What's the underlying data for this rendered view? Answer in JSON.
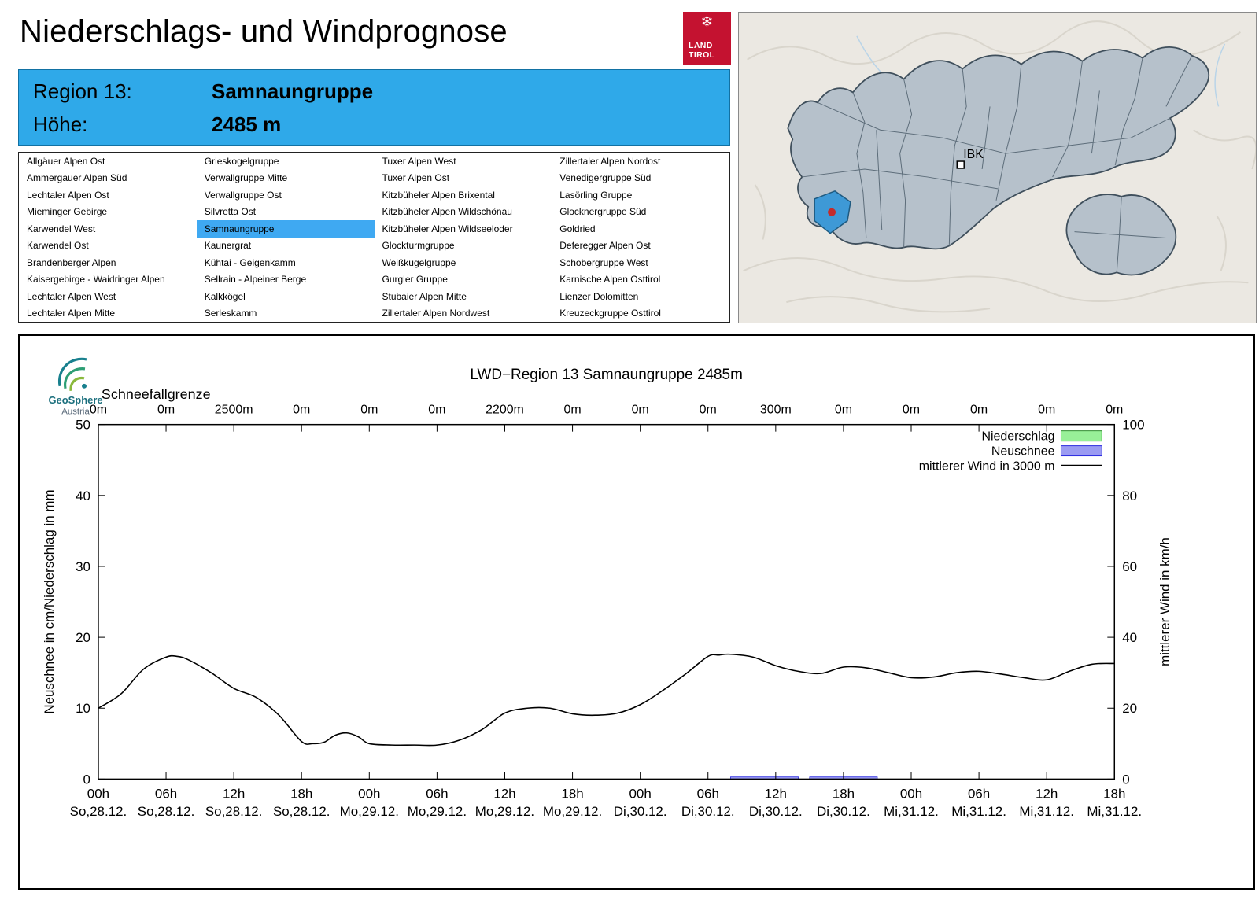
{
  "header": {
    "title": "Niederschlags- und Windprognose",
    "logo": {
      "line1": "LAND",
      "line2": "TIROL"
    }
  },
  "map": {
    "city_label": "IBK"
  },
  "region_info": {
    "region_label": "Region 13:",
    "region_value": "Samnaungruppe",
    "altitude_label": "Höhe:",
    "altitude_value": "2485 m"
  },
  "region_list": {
    "selected": "Samnaungruppe",
    "columns": [
      [
        "Allgäuer Alpen Ost",
        "Ammergauer Alpen Süd",
        "Lechtaler Alpen Ost",
        "Mieminger Gebirge",
        "Karwendel West",
        "Karwendel Ost",
        "Brandenberger Alpen",
        "Kaisergebirge - Waidringer Alpen",
        "Lechtaler Alpen West",
        "Lechtaler Alpen Mitte"
      ],
      [
        "Grieskogelgruppe",
        "Verwallgruppe Mitte",
        "Verwallgruppe Ost",
        "Silvretta Ost",
        "Samnaungruppe",
        "Kaunergrat",
        "Kühtai - Geigenkamm",
        "Sellrain - Alpeiner Berge",
        "Kalkkögel",
        "Serleskamm"
      ],
      [
        "Tuxer Alpen West",
        "Tuxer Alpen Ost",
        "Kitzbüheler Alpen Brixental",
        "Kitzbüheler Alpen Wildschönau",
        "Kitzbüheler Alpen Wildseeloder",
        "Glockturmgruppe",
        "Weißkugelgruppe",
        "Gurgler Gruppe",
        "Stubaier Alpen Mitte",
        "Zillertaler Alpen Nordwest"
      ],
      [
        "Zillertaler Alpen Nordost",
        "Venedigergruppe Süd",
        "Lasörling Gruppe",
        "Glocknergruppe Süd",
        "Goldried",
        "Deferegger Alpen Ost",
        "Schobergruppe West",
        "Karnische Alpen Osttirol",
        "Lienzer Dolomitten",
        "Kreuzeckgruppe Osttirol"
      ]
    ]
  },
  "geosphere": {
    "name": "GeoSphere",
    "sub": "Austria"
  },
  "colors": {
    "header_blue": "#2FA9E9",
    "highlight_blue": "#3FA9F2",
    "land_tirol_red": "#C41230",
    "niederschlag_green": "#98F098",
    "neuschnee_blue": "#9B9BF2",
    "wind_line": "#000000",
    "map_region_fill": "#B6C1CB",
    "map_selected_fill": "#3E99D6",
    "map_dot_red": "#C42B2B"
  },
  "chart_data": {
    "type": "line",
    "title": "LWD−Region 13 Samnaungruppe 2485m",
    "snowline_label": "Schneefallgrenze",
    "snowline_values": [
      "0m",
      "0m",
      "2500m",
      "0m",
      "0m",
      "0m",
      "2200m",
      "0m",
      "0m",
      "0m",
      "300m",
      "0m",
      "0m",
      "0m",
      "0m",
      "0m"
    ],
    "ylabel_left": "Neuschnee in cm/Niederschlag in mm",
    "ylabel_right": "mittlerer Wind in km/h",
    "ylim_left": [
      0,
      50
    ],
    "ylim_right": [
      0,
      100
    ],
    "yticks_left": [
      0,
      10,
      20,
      30,
      40,
      50
    ],
    "yticks_right": [
      0,
      20,
      40,
      60,
      80,
      100
    ],
    "x_range_hours": [
      0,
      90
    ],
    "x_tick_step_hours": 6,
    "x_tick_times": [
      "00h",
      "06h",
      "12h",
      "18h",
      "00h",
      "06h",
      "12h",
      "18h",
      "00h",
      "06h",
      "12h",
      "18h",
      "00h",
      "06h",
      "12h",
      "18h"
    ],
    "x_tick_dates": [
      "So,28.12.",
      "So,28.12.",
      "So,28.12.",
      "So,28.12.",
      "Mo,29.12.",
      "Mo,29.12.",
      "Mo,29.12.",
      "Mo,29.12.",
      "Di,30.12.",
      "Di,30.12.",
      "Di,30.12.",
      "Di,30.12.",
      "Mi,31.12.",
      "Mi,31.12.",
      "Mi,31.12.",
      "Mi,31.12."
    ],
    "legend": [
      {
        "label": "Niederschlag",
        "type": "box",
        "color": "#98F098",
        "border": "#2E8B2E"
      },
      {
        "label": "Neuschnee",
        "type": "box",
        "color": "#9B9BF2",
        "border": "#2A2AE0"
      },
      {
        "label": "mittlerer Wind in 3000 m",
        "type": "line",
        "color": "#000000"
      }
    ],
    "wind_series": {
      "name": "mittlerer Wind in 3000 m",
      "unit": "km/h",
      "axis": "right",
      "points": [
        [
          0,
          20
        ],
        [
          2,
          24
        ],
        [
          4,
          31
        ],
        [
          6,
          34.4
        ],
        [
          7,
          34.6
        ],
        [
          8,
          33.6
        ],
        [
          10,
          30
        ],
        [
          12,
          25.6
        ],
        [
          14,
          23
        ],
        [
          16,
          18
        ],
        [
          18,
          10.6
        ],
        [
          19,
          10
        ],
        [
          20,
          10.4
        ],
        [
          21,
          12.4
        ],
        [
          22,
          13
        ],
        [
          23,
          12
        ],
        [
          24,
          10
        ],
        [
          26,
          9.6
        ],
        [
          28,
          9.6
        ],
        [
          30,
          9.6
        ],
        [
          32,
          11
        ],
        [
          34,
          14
        ],
        [
          36,
          18.6
        ],
        [
          38,
          20
        ],
        [
          40,
          20
        ],
        [
          42,
          18.4
        ],
        [
          44,
          18
        ],
        [
          46,
          18.6
        ],
        [
          48,
          21
        ],
        [
          50,
          25
        ],
        [
          52,
          29.6
        ],
        [
          54,
          34.6
        ],
        [
          55,
          35
        ],
        [
          56,
          35.2
        ],
        [
          58,
          34.4
        ],
        [
          60,
          32
        ],
        [
          62,
          30.4
        ],
        [
          64,
          29.8
        ],
        [
          66,
          31.6
        ],
        [
          68,
          31.4
        ],
        [
          70,
          30
        ],
        [
          72,
          28.6
        ],
        [
          74,
          28.8
        ],
        [
          76,
          30
        ],
        [
          78,
          30.4
        ],
        [
          80,
          29.6
        ],
        [
          82,
          28.6
        ],
        [
          84,
          28
        ],
        [
          86,
          30.4
        ],
        [
          88,
          32.4
        ],
        [
          90,
          32.6
        ]
      ]
    },
    "neuschnee_series": {
      "name": "Neuschnee",
      "unit": "cm",
      "axis": "left",
      "segments": [
        {
          "from_h": 56,
          "to_h": 62,
          "cm": 0.3
        },
        {
          "from_h": 63,
          "to_h": 69,
          "cm": 0.3
        }
      ]
    },
    "niederschlag_series": {
      "name": "Niederschlag",
      "unit": "mm",
      "axis": "left",
      "segments": []
    }
  }
}
